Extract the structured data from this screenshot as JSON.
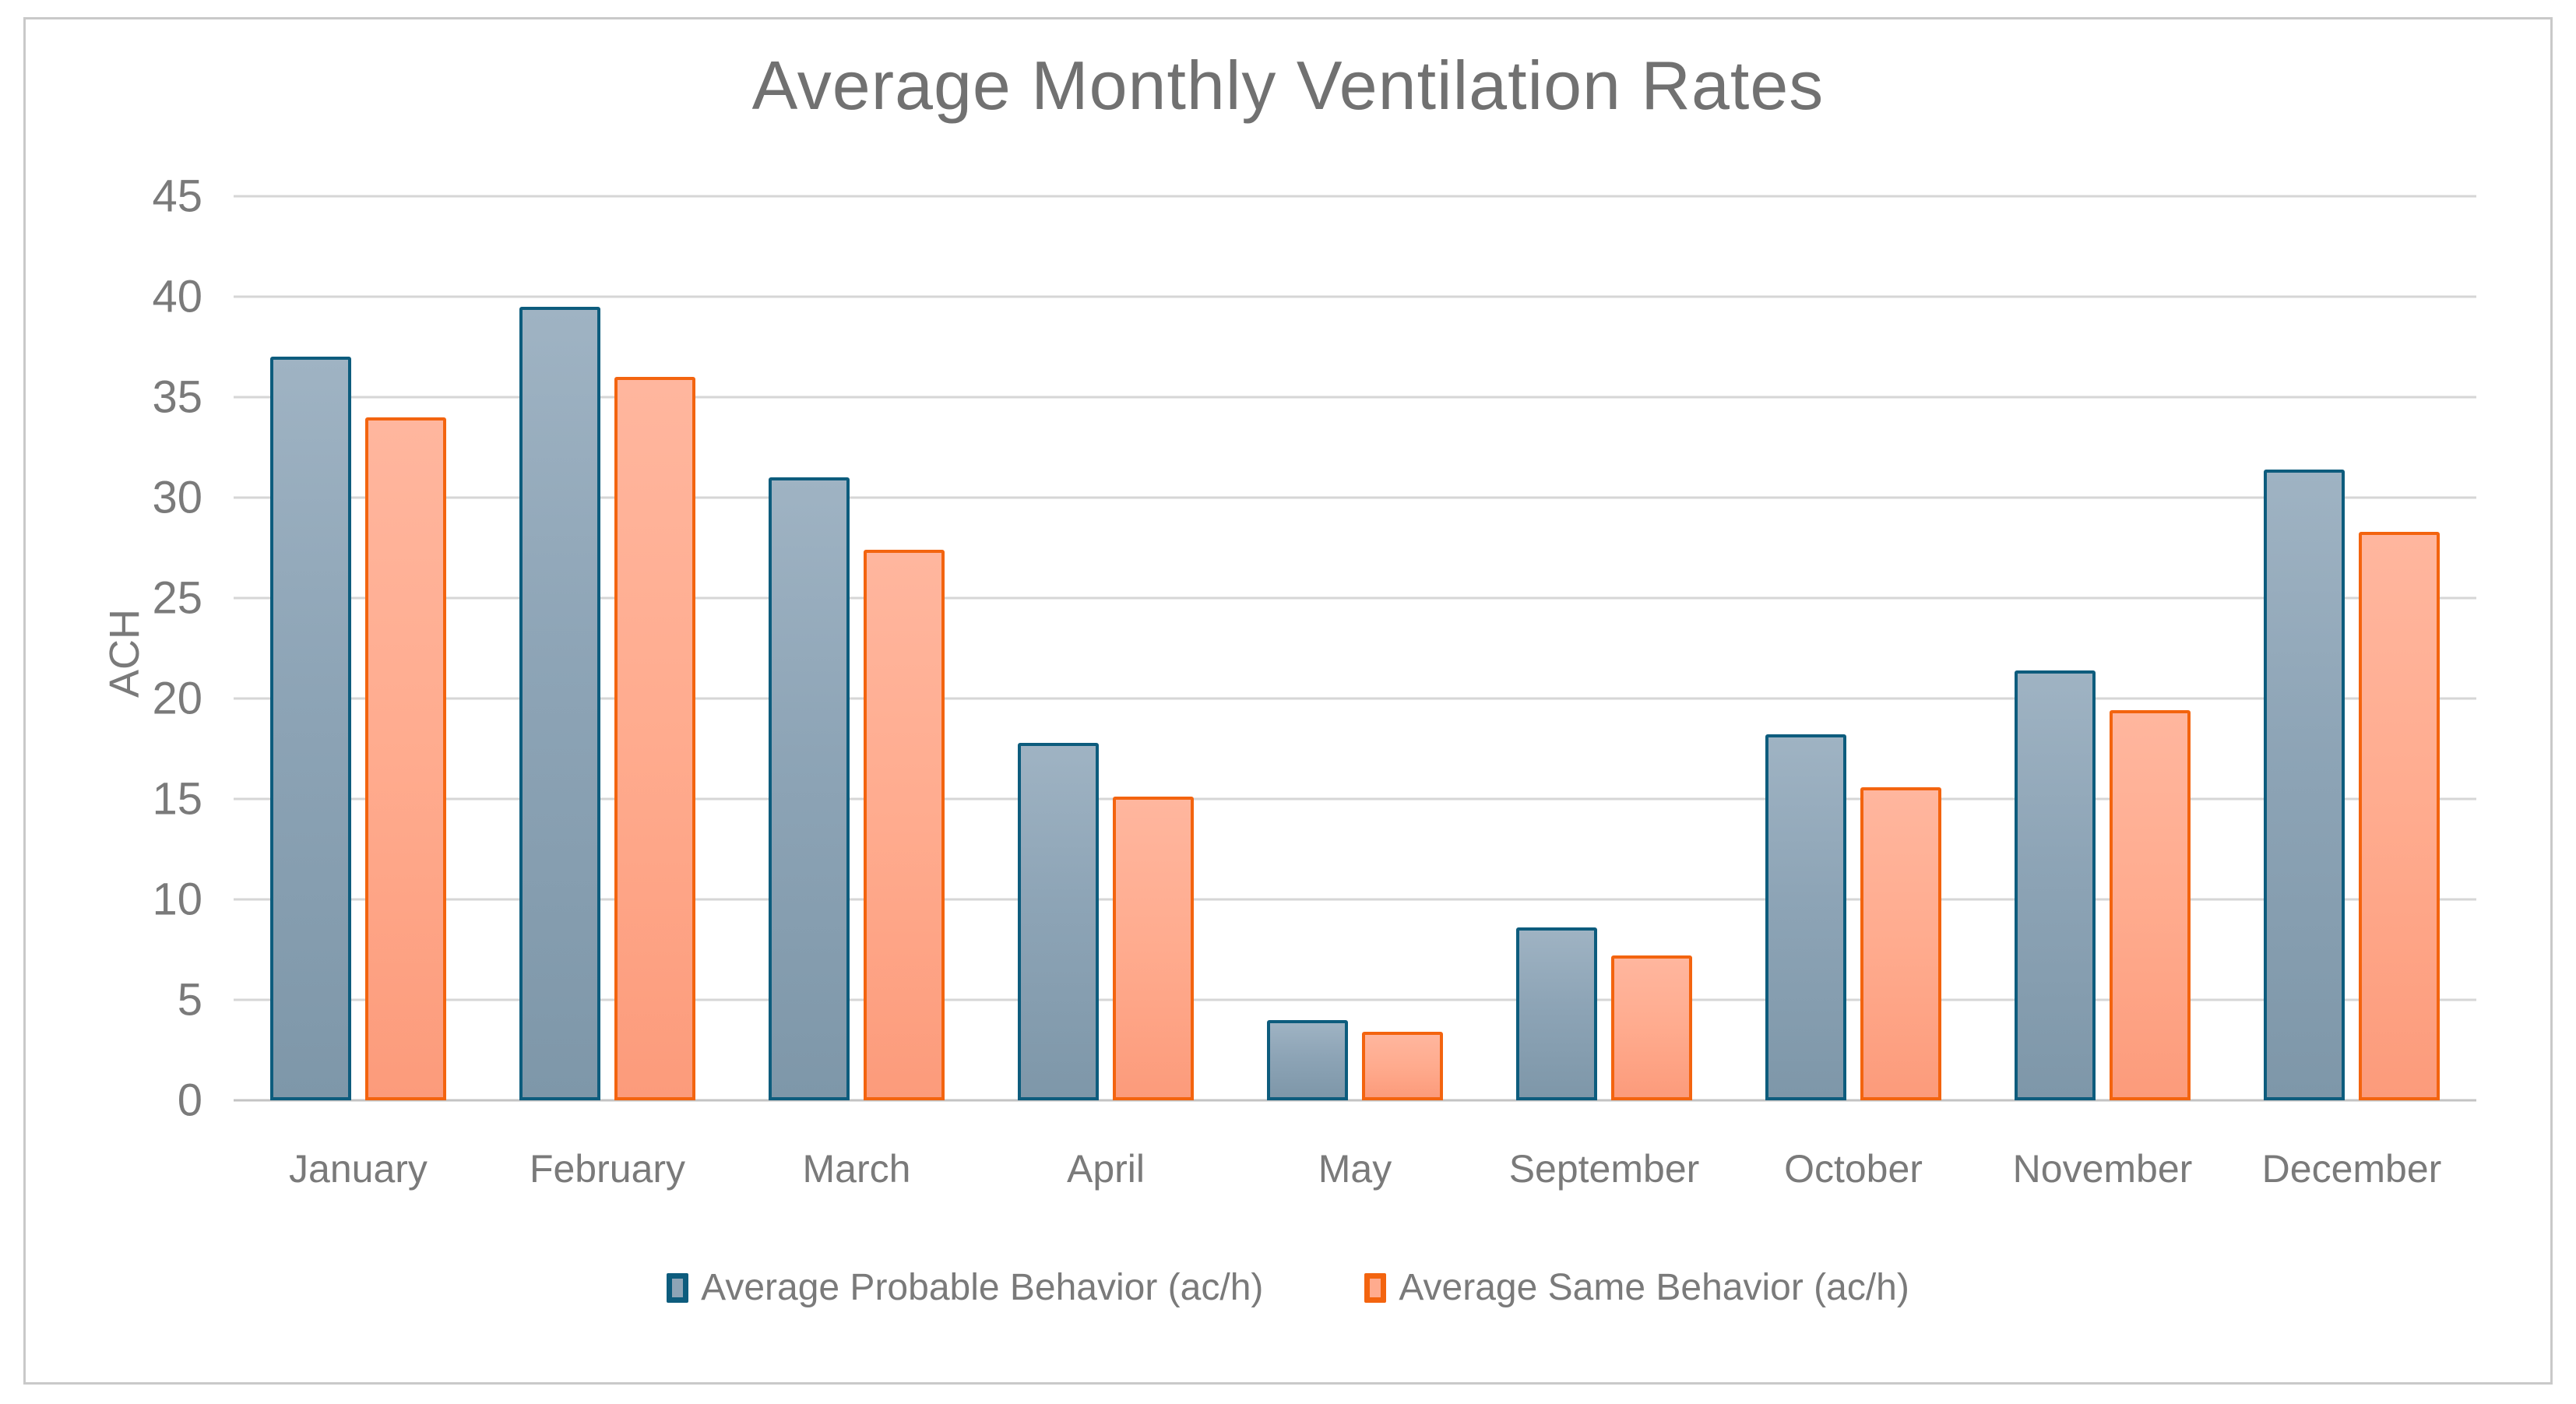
{
  "title": "Average Monthly Ventilation Rates",
  "chart_data": {
    "type": "bar",
    "title": "Average Monthly Ventilation Rates",
    "xlabel": "",
    "ylabel": "ACH",
    "ylim": [
      0,
      45
    ],
    "yticks": [
      0,
      5,
      10,
      15,
      20,
      25,
      30,
      35,
      40,
      45
    ],
    "grid": true,
    "legend_position": "bottom",
    "categories": [
      "January",
      "February",
      "March",
      "April",
      "May",
      "September",
      "October",
      "November",
      "December"
    ],
    "series": [
      {
        "name": "Average Probable Behavior (ac/h)",
        "values": [
          37.0,
          39.5,
          31.0,
          17.8,
          4.0,
          8.6,
          18.2,
          21.4,
          31.4
        ],
        "fill": "#8DA4B6",
        "fill_light": "#9FB3C3",
        "fill_dark": "#7E97A9",
        "border": "#0D5C7D"
      },
      {
        "name": "Average Same Behavior (ac/h)",
        "values": [
          34.0,
          36.0,
          27.4,
          15.1,
          3.4,
          7.2,
          15.6,
          19.4,
          28.3
        ],
        "fill": "#FFAB8E",
        "fill_light": "#FFB69E",
        "fill_dark": "#FC9B7B",
        "border": "#F3640F"
      }
    ]
  },
  "colors": {
    "title_text": "#717171",
    "axis_text": "#7A7A7A",
    "gridline": "#D6D6D6",
    "gridline_zero": "#C3C3C3",
    "frame_border": "#C9C9C9",
    "background": "#FFFFFF"
  }
}
